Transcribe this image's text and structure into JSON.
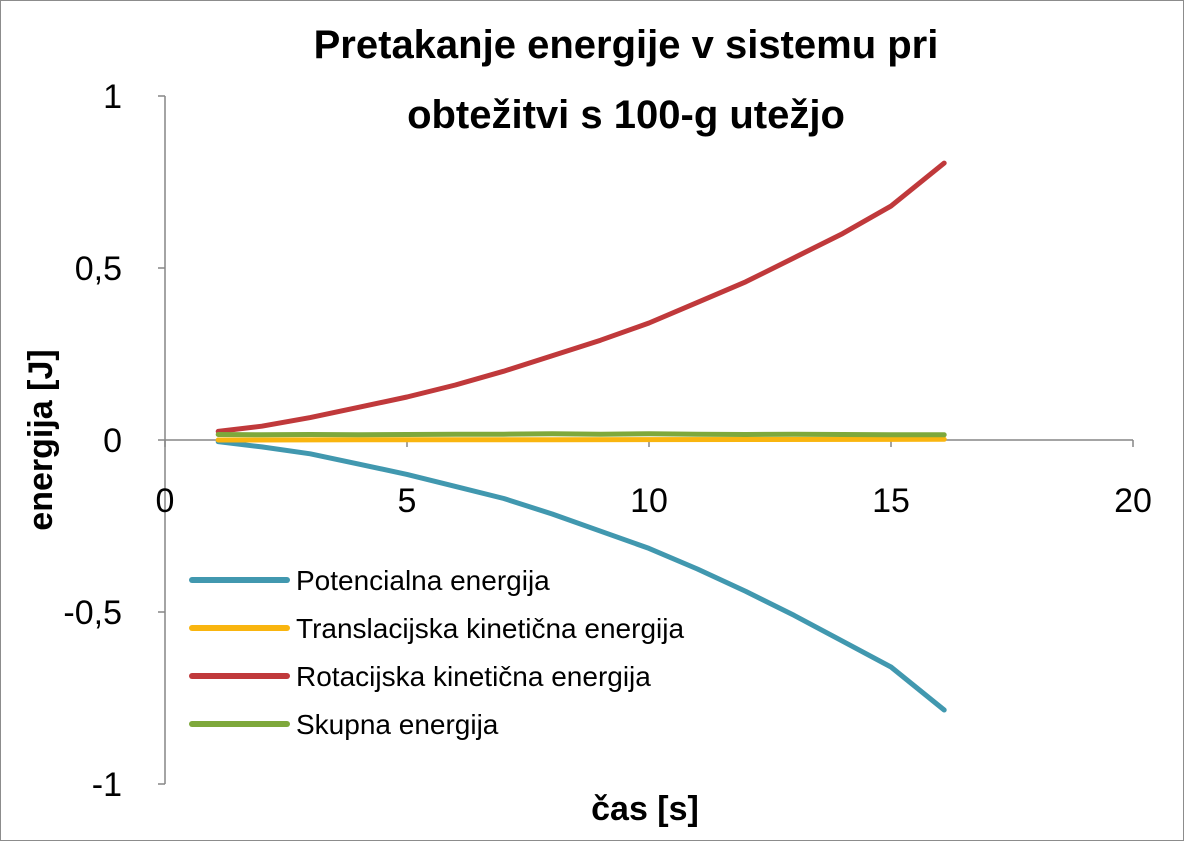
{
  "chart_data": {
    "type": "line",
    "title_lines": [
      "Pretakanje energije v sistemu pri",
      "obtežitvi s 100-g utežjo"
    ],
    "xlabel": "čas [s]",
    "ylabel": "energija [J]",
    "xlim": [
      0,
      20
    ],
    "ylim": [
      -1,
      1
    ],
    "x_ticks": [
      0,
      5,
      10,
      15,
      20
    ],
    "x_tick_labels": [
      "0",
      "5",
      "10",
      "15",
      "20"
    ],
    "y_ticks": [
      1,
      0.5,
      0,
      -0.5,
      -1
    ],
    "y_tick_labels": [
      "1",
      "0,5",
      "0",
      "-0,5",
      "-1"
    ],
    "grid": false,
    "legend_position": "bottom-left",
    "series": [
      {
        "name": "Potencialna energija",
        "color": "#4198AF",
        "x": [
          1.1,
          2,
          3,
          4,
          5,
          6,
          7,
          8,
          9,
          10,
          11,
          12,
          13,
          14,
          15,
          16.1
        ],
        "y": [
          -0.005,
          -0.02,
          -0.04,
          -0.07,
          -0.1,
          -0.135,
          -0.17,
          -0.215,
          -0.265,
          -0.315,
          -0.375,
          -0.44,
          -0.51,
          -0.585,
          -0.66,
          -0.785
        ]
      },
      {
        "name": "Translacijska kinetična energija",
        "color": "#F9B50F",
        "x": [
          1.1,
          4,
          8,
          12,
          16.1
        ],
        "y": [
          0.0,
          0.0005,
          0.001,
          0.0015,
          0.002
        ]
      },
      {
        "name": "Rotacijska kinetična energija",
        "color": "#C0393B",
        "x": [
          1.1,
          2,
          3,
          4,
          5,
          6,
          7,
          8,
          9,
          10,
          11,
          12,
          13,
          14,
          15,
          16.1
        ],
        "y": [
          0.025,
          0.04,
          0.065,
          0.095,
          0.125,
          0.16,
          0.2,
          0.245,
          0.29,
          0.34,
          0.4,
          0.46,
          0.53,
          0.6,
          0.68,
          0.805
        ]
      },
      {
        "name": "Skupna energija",
        "color": "#7EA83B",
        "x": [
          1.1,
          2,
          3,
          4,
          5,
          6,
          7,
          8,
          9,
          10,
          11,
          12,
          13,
          14,
          15,
          16.1
        ],
        "y": [
          0.016,
          0.015,
          0.016,
          0.015,
          0.016,
          0.017,
          0.017,
          0.018,
          0.017,
          0.018,
          0.017,
          0.016,
          0.017,
          0.016,
          0.015,
          0.015
        ]
      }
    ]
  }
}
